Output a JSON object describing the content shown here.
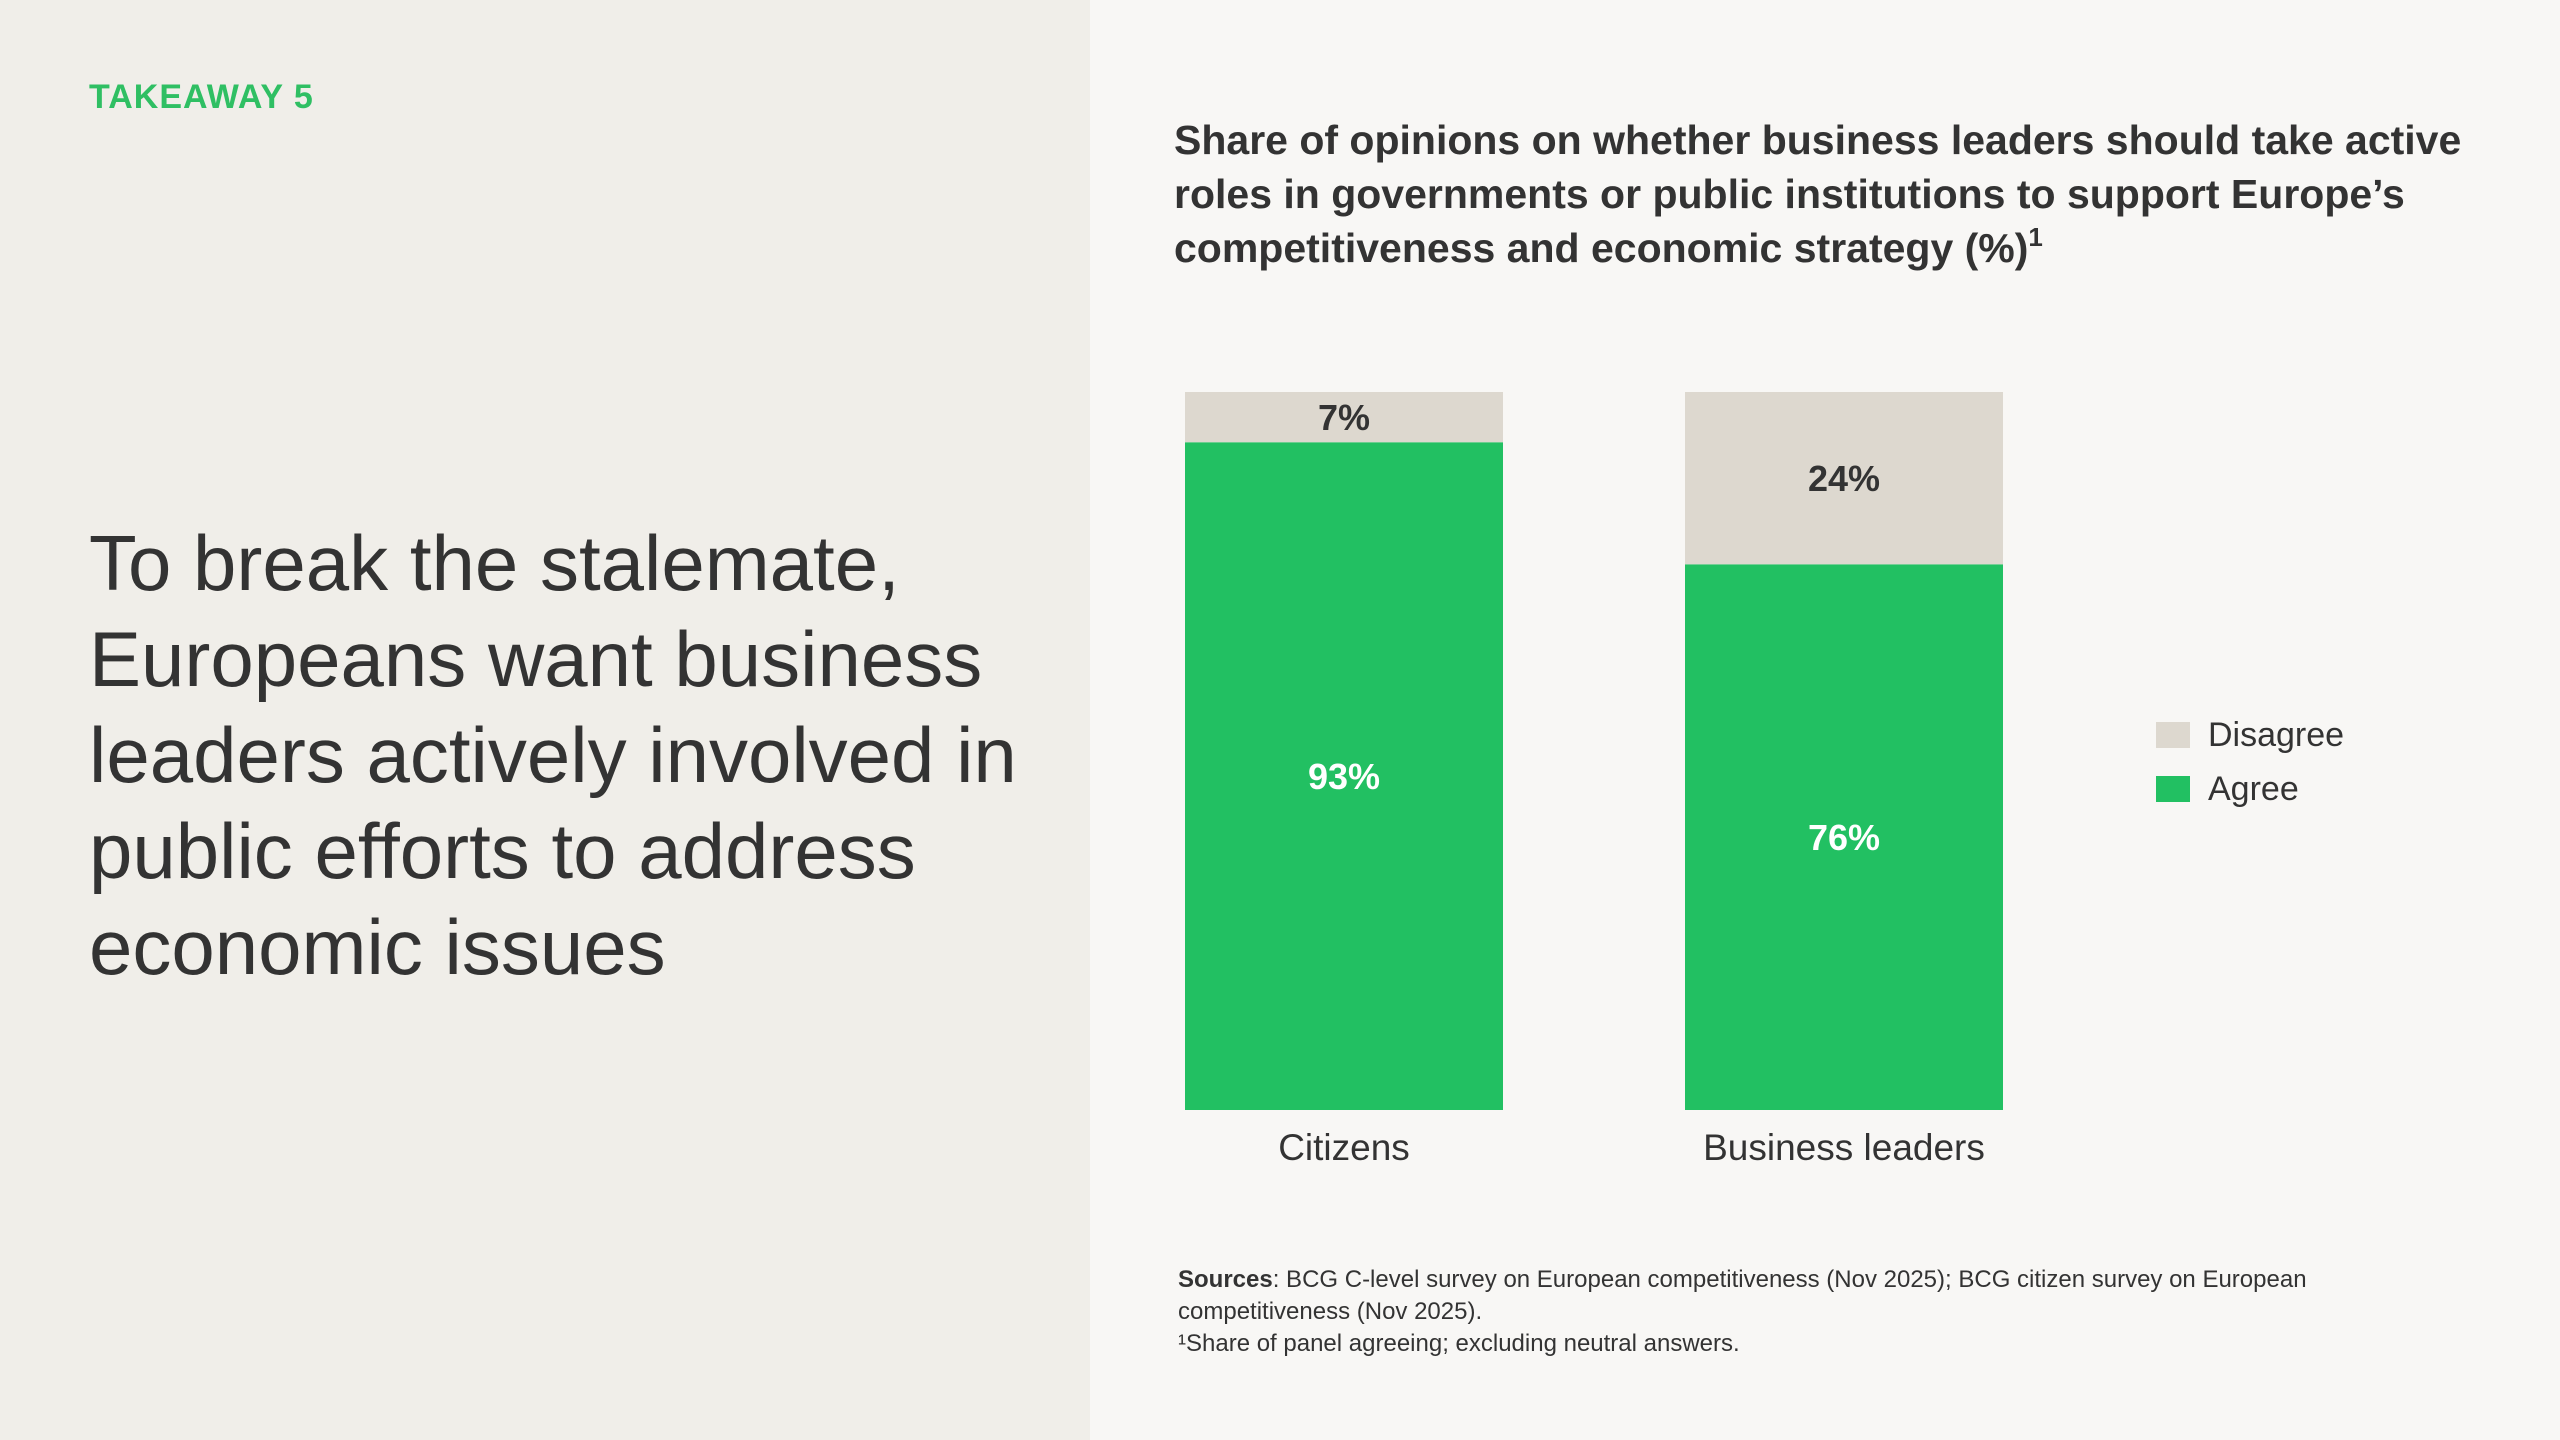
{
  "left": {
    "takeaway": "TAKEAWAY 5",
    "headline": "To break the stalemate, Europeans want business leaders actively involved in public efforts to address economic issues"
  },
  "chart": {
    "title": "Share of opinions on whether business leaders should take active roles in governments or public institutions to support Europe’s competitiveness and economic strategy (%)",
    "title_footnote_mark": "1"
  },
  "chart_data": {
    "type": "bar",
    "stacked": true,
    "categories": [
      "Citizens",
      "Business leaders"
    ],
    "series": [
      {
        "name": "Agree",
        "values": [
          93,
          76
        ],
        "labels": [
          "93%",
          "76%"
        ],
        "color": "#22c062"
      },
      {
        "name": "Disagree",
        "values": [
          7,
          24
        ],
        "labels": [
          "7%",
          "24%"
        ],
        "color": "#ddd8cf"
      }
    ],
    "ylim": [
      0,
      100
    ],
    "legend_position": "right",
    "legend_order": [
      "Disagree",
      "Agree"
    ],
    "grid": false
  },
  "sources": {
    "label": "Sources",
    "text": ": BCG C-level survey on European competitiveness (Nov 2025); BCG citizen survey on European competitiveness (Nov 2025).",
    "footnote": "¹Share of panel agreeing; excluding neutral answers."
  },
  "colors": {
    "accent": "#2fbf63",
    "agree": "#22c062",
    "disagree": "#ddd8cf",
    "text": "#333333"
  }
}
